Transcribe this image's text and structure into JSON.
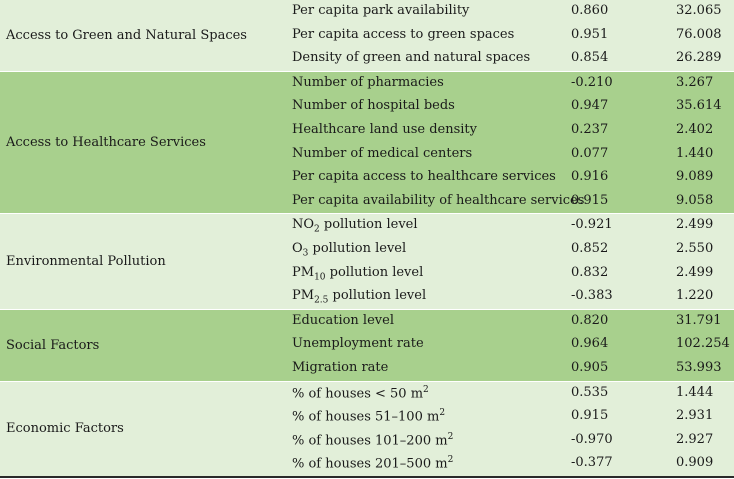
{
  "groups": [
    {
      "category": "Access to Green and Natural Spaces",
      "rows": [
        {
          "indicator": "Per capita park availability",
          "v1": "0.860",
          "v2": "32.065"
        },
        {
          "indicator": "Per capita access to green spaces",
          "v1": "0.951",
          "v2": "76.008"
        },
        {
          "indicator": "Density of green and natural spaces",
          "v1": "0.854",
          "v2": "26.289"
        }
      ]
    },
    {
      "category": "Access to Healthcare Services",
      "rows": [
        {
          "indicator": "Number of pharmacies",
          "v1": "-0.210",
          "v2": "3.267"
        },
        {
          "indicator": "Number of hospital beds",
          "v1": "0.947",
          "v2": "35.614"
        },
        {
          "indicator": "Healthcare land use density",
          "v1": "0.237",
          "v2": "2.402"
        },
        {
          "indicator": "Number of medical centers",
          "v1": "0.077",
          "v2": "1.440"
        },
        {
          "indicator": "Per capita access to healthcare services",
          "v1": "0.916",
          "v2": "9.089"
        },
        {
          "indicator": "Per capita availability of healthcare services",
          "v1": "0.915",
          "v2": "9.058"
        }
      ]
    },
    {
      "category": "Environmental Pollution",
      "rows": [
        {
          "indicator_main": "NO",
          "indicator_sub": "2",
          "indicator_rest": " pollution level",
          "v1": "-0.921",
          "v2": "2.499"
        },
        {
          "indicator_main": "O",
          "indicator_sub": "3",
          "indicator_rest": " pollution level",
          "v1": "0.852",
          "v2": "2.550"
        },
        {
          "indicator_main": "PM",
          "indicator_sub": "10",
          "indicator_rest": " pollution level",
          "v1": "0.832",
          "v2": "2.499"
        },
        {
          "indicator_main": "PM",
          "indicator_sub": "2.5",
          "indicator_rest": " pollution level",
          "v1": "-0.383",
          "v2": "1.220"
        }
      ]
    },
    {
      "category": "Social Factors",
      "rows": [
        {
          "indicator": "Education level",
          "v1": "0.820",
          "v2": "31.791"
        },
        {
          "indicator": "Unemployment rate",
          "v1": "0.964",
          "v2": "102.254"
        },
        {
          "indicator": "Migration rate",
          "v1": "0.905",
          "v2": "53.993"
        }
      ]
    },
    {
      "category": "Economic Factors",
      "rows": [
        {
          "indicator_main": "% of houses < 50 m",
          "indicator_sup": "2",
          "v1": "0.535",
          "v2": "1.444"
        },
        {
          "indicator_main": "% of houses 51–100 m",
          "indicator_sup": "2",
          "v1": "0.915",
          "v2": "2.931"
        },
        {
          "indicator_main": "% of houses 101–200 m",
          "indicator_sup": "2",
          "v1": "-0.970",
          "v2": "2.927"
        },
        {
          "indicator_main": "% of houses 201–500 m",
          "indicator_sup": "2",
          "v1": "-0.377",
          "v2": "0.909"
        }
      ]
    }
  ]
}
